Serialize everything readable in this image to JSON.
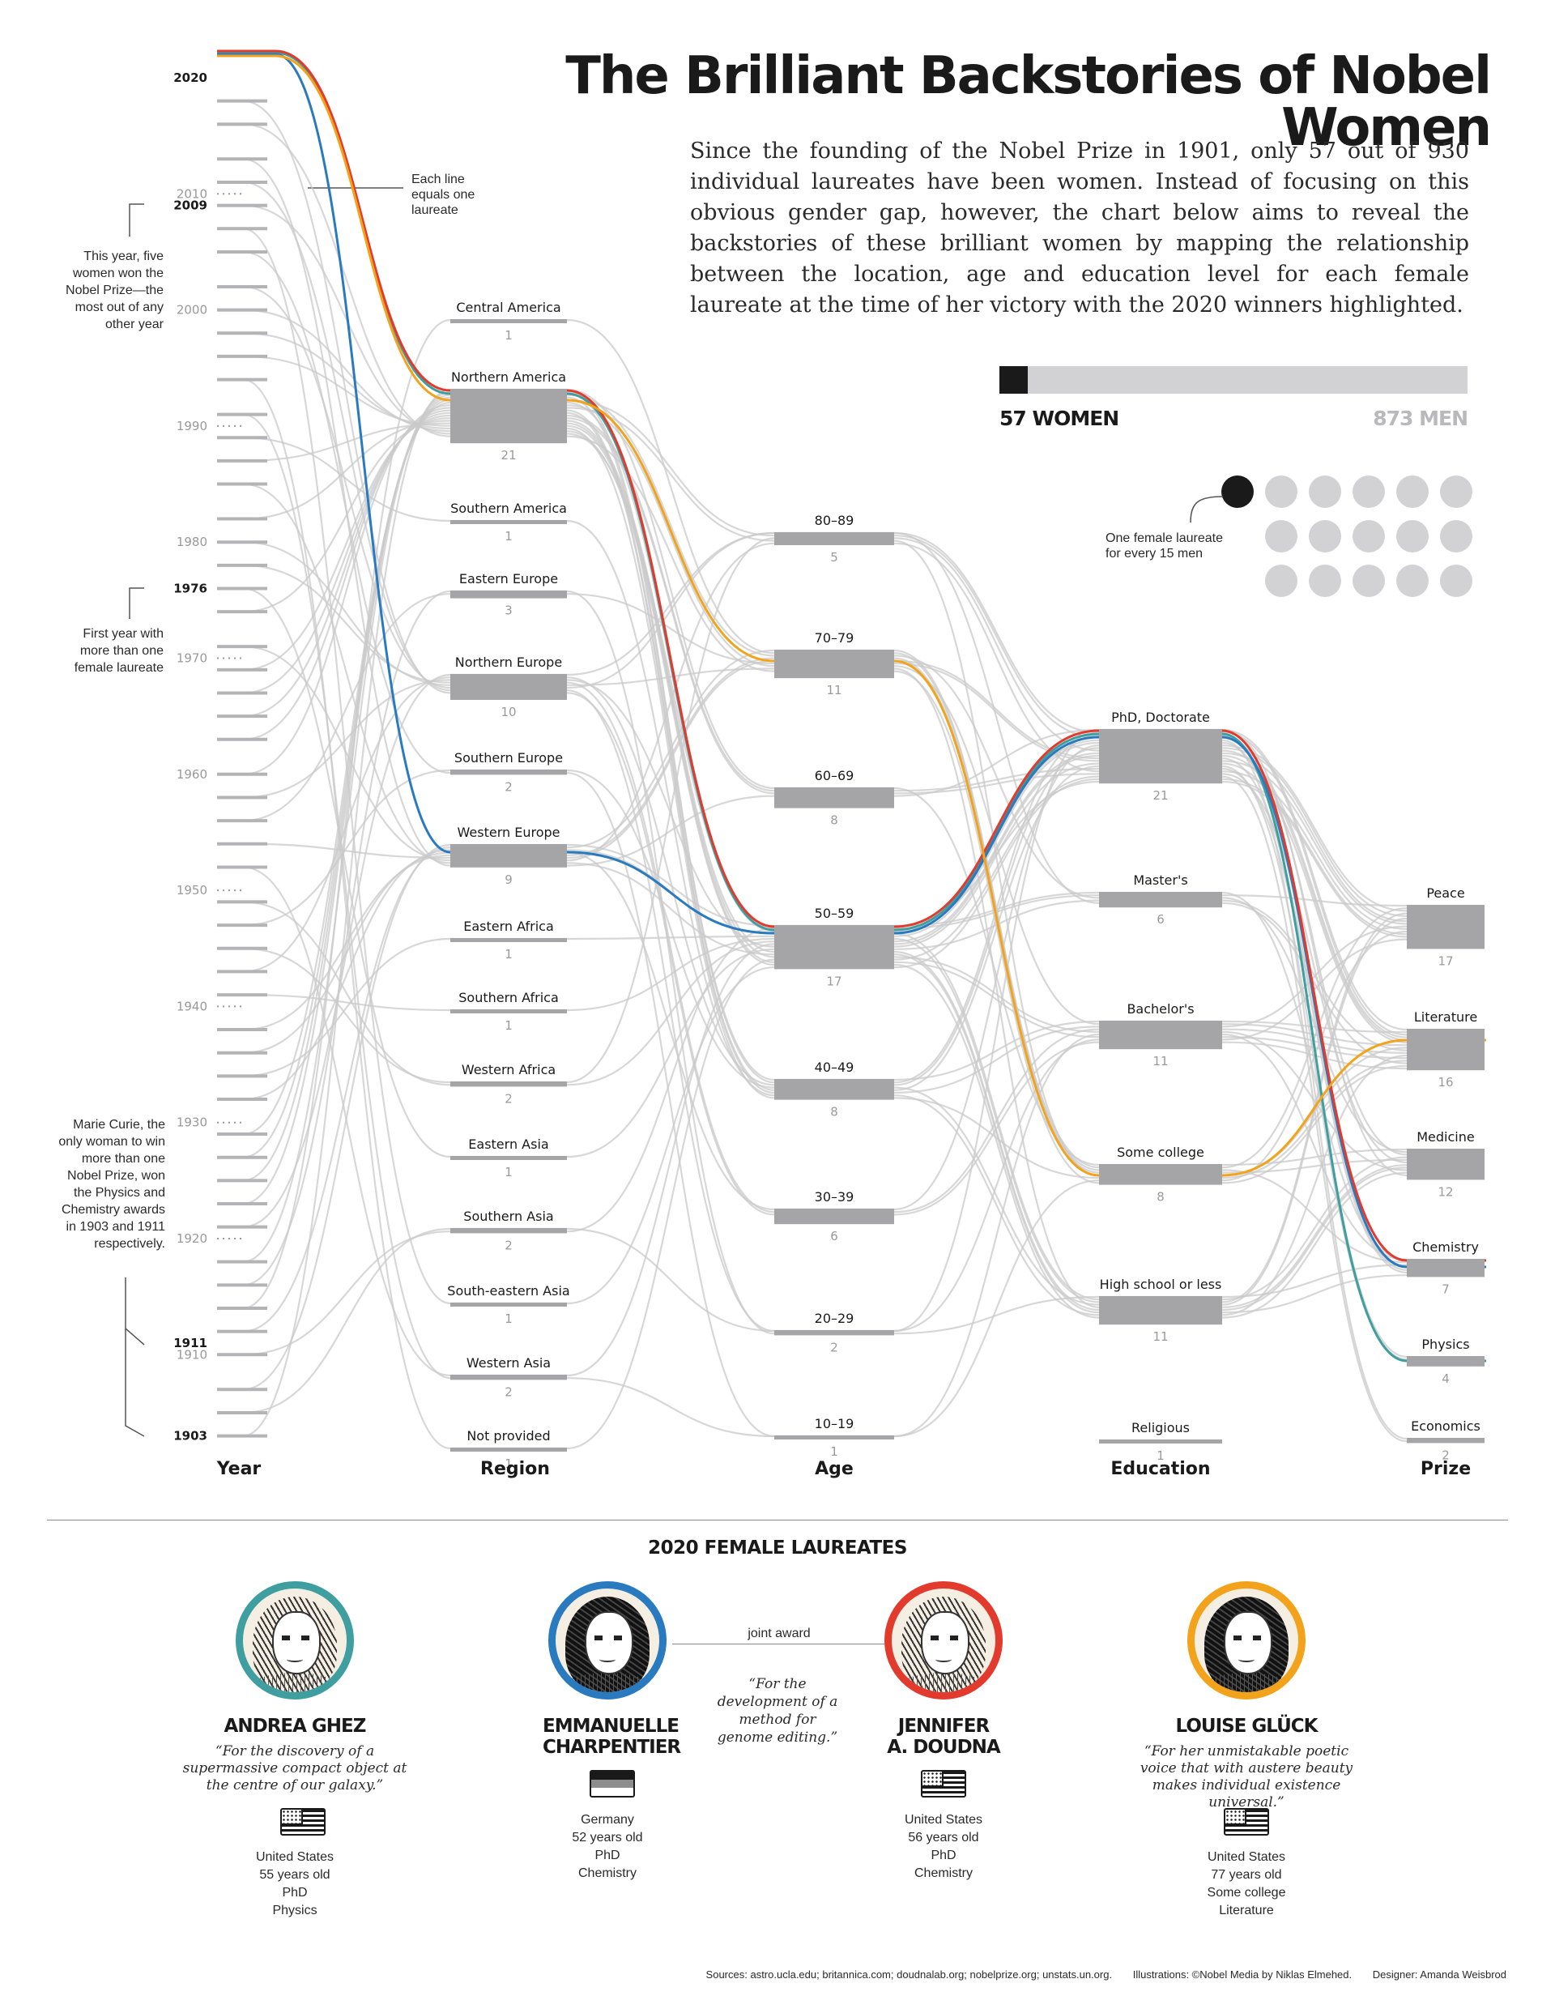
{
  "title": "The Brilliant Backstories of Nobel Women",
  "intro": "Since the founding of the Nobel Prize in 1901, only 57 out of 930 individual laureates have been women. Instead of focusing on this obvious gender gap, however, the chart below aims to reveal the backstories of these brilliant women by mapping the relationship between the location, age and education level for each female laureate at the time of her victory with the 2020 winners highlighted.",
  "gender_bar": {
    "women_label": "57 WOMEN",
    "men_label": "873 MEN",
    "women": 57,
    "men": 873
  },
  "dot_note": "One female laureate for every 15 men",
  "line_note": "Each line equals one laureate",
  "notes": {
    "five_women": "This year, five women won the Nobel Prize—the most out of any other year",
    "first_year": "First year with more than one female laureate",
    "curie": "Marie Curie, the only woman to win more than one Nobel Prize, won the Physics and Chemistry awards in 1903 and 1911 respectively."
  },
  "colors": {
    "ghez": "#3f9ea0",
    "charpentier": "#2a7ac0",
    "doudna": "#e23b2e",
    "gluck": "#f2a31b",
    "node": "#a5a5a7",
    "flow": "#c9c9cb"
  },
  "chart_data": {
    "type": "sankey",
    "axes": [
      "Year",
      "Region",
      "Age",
      "Education",
      "Prize"
    ],
    "year_ticks": [
      {
        "label": "2020",
        "key": true
      },
      {
        "label": "2010",
        "key": false
      },
      {
        "label": "2009",
        "key": true
      },
      {
        "label": "2000",
        "key": false
      },
      {
        "label": "1990",
        "key": false
      },
      {
        "label": "1980",
        "key": false
      },
      {
        "label": "1976",
        "key": true
      },
      {
        "label": "1970",
        "key": false
      },
      {
        "label": "1960",
        "key": false
      },
      {
        "label": "1950",
        "key": false
      },
      {
        "label": "1940",
        "key": false
      },
      {
        "label": "1930",
        "key": false
      },
      {
        "label": "1920",
        "key": false
      },
      {
        "label": "1911",
        "key": true
      },
      {
        "label": "1910",
        "key": false
      },
      {
        "label": "1903",
        "key": true
      }
    ],
    "region": [
      {
        "name": "Central America",
        "count": 1
      },
      {
        "name": "Northern America",
        "count": 21
      },
      {
        "name": "Southern America",
        "count": 1
      },
      {
        "name": "Eastern Europe",
        "count": 3
      },
      {
        "name": "Northern Europe",
        "count": 10
      },
      {
        "name": "Southern Europe",
        "count": 2
      },
      {
        "name": "Western Europe",
        "count": 9
      },
      {
        "name": "Eastern Africa",
        "count": 1
      },
      {
        "name": "Southern Africa",
        "count": 1
      },
      {
        "name": "Western Africa",
        "count": 2
      },
      {
        "name": "Eastern Asia",
        "count": 1
      },
      {
        "name": "Southern Asia",
        "count": 2
      },
      {
        "name": "South-eastern Asia",
        "count": 1
      },
      {
        "name": "Western Asia",
        "count": 2
      },
      {
        "name": "Not provided",
        "count": 1
      }
    ],
    "age": [
      {
        "name": "80–89",
        "count": 5
      },
      {
        "name": "70–79",
        "count": 11
      },
      {
        "name": "60–69",
        "count": 8
      },
      {
        "name": "50–59",
        "count": 17
      },
      {
        "name": "40–49",
        "count": 8
      },
      {
        "name": "30–39",
        "count": 6
      },
      {
        "name": "20–29",
        "count": 2
      },
      {
        "name": "10–19",
        "count": 1
      }
    ],
    "education": [
      {
        "name": "PhD, Doctorate",
        "count": 21
      },
      {
        "name": "Master's",
        "count": 6
      },
      {
        "name": "Bachelor's",
        "count": 11
      },
      {
        "name": "Some college",
        "count": 8
      },
      {
        "name": "High school or less",
        "count": 11
      },
      {
        "name": "Religious",
        "count": 1
      }
    ],
    "prize": [
      {
        "name": "Peace",
        "count": 17
      },
      {
        "name": "Literature",
        "count": 16
      },
      {
        "name": "Medicine",
        "count": 12
      },
      {
        "name": "Chemistry",
        "count": 7
      },
      {
        "name": "Physics",
        "count": 4
      },
      {
        "name": "Economics",
        "count": 2
      }
    ],
    "highlighted_2020": [
      {
        "name": "Andrea Ghez",
        "color": "ghez",
        "region": "Northern America",
        "age": "50–59",
        "education": "PhD, Doctorate",
        "prize": "Physics"
      },
      {
        "name": "Emmanuelle Charpentier",
        "color": "charpentier",
        "region": "Western Europe",
        "age": "50–59",
        "education": "PhD, Doctorate",
        "prize": "Chemistry"
      },
      {
        "name": "Jennifer A. Doudna",
        "color": "doudna",
        "region": "Northern America",
        "age": "50–59",
        "education": "PhD, Doctorate",
        "prize": "Chemistry"
      },
      {
        "name": "Louise Glück",
        "color": "gluck",
        "region": "Northern America",
        "age": "70–79",
        "education": "Some college",
        "prize": "Literature"
      }
    ]
  },
  "laureates_title": "2020 FEMALE LAUREATES",
  "laureates": [
    {
      "name": "ANDREA GHEZ",
      "quote": "“For the discovery of a supermassive compact object at the centre of our galaxy.”",
      "country": "United States",
      "age": "55 years old",
      "education": "PhD",
      "prize": "Physics",
      "flag": "us",
      "ring": "#3f9ea0"
    },
    {
      "name": "EMMANUELLE CHARPENTIER",
      "quote": "",
      "country": "Germany",
      "age": "52 years old",
      "education": "PhD",
      "prize": "Chemistry",
      "flag": "de",
      "ring": "#2a7ac0"
    },
    {
      "name": "JENNIFER A. DOUDNA",
      "quote": "",
      "country": "United States",
      "age": "56 years old",
      "education": "PhD",
      "prize": "Chemistry",
      "flag": "us",
      "ring": "#e23b2e"
    },
    {
      "name": "LOUISE GLÜCK",
      "quote": "“For her unmistakable poetic voice that with austere beauty makes individual existence universal.”",
      "country": "United States",
      "age": "77 years old",
      "education": "Some college",
      "prize": "Literature",
      "flag": "us",
      "ring": "#f2a31b"
    }
  ],
  "joint": {
    "label": "joint award",
    "quote": "“For the development of a method for genome editing.”"
  },
  "footer": {
    "sources": "Sources: astro.ucla.edu; britannica.com; doudnalab.org; nobelprize.org; unstats.un.org.",
    "illustrations": "Illustrations: ©Nobel Media by Niklas Elmehed.",
    "designer": "Designer: Amanda Weisbrod"
  }
}
